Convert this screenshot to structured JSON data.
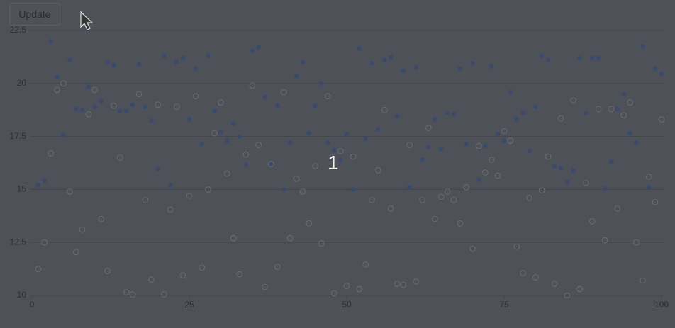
{
  "button": "Update",
  "overlay": "1",
  "chart_data": {
    "type": "scatter",
    "xlim": [
      0,
      100
    ],
    "xticks": [
      0,
      25,
      50,
      75,
      100
    ],
    "ylim": [
      10,
      22.5
    ],
    "yticks": [
      10,
      12.5,
      15,
      17.5,
      20,
      22.5
    ],
    "grid": true,
    "x": [
      1,
      2,
      3,
      4,
      5,
      6,
      7,
      8,
      9,
      10,
      11,
      12,
      13,
      14,
      15,
      16,
      17,
      18,
      19,
      20,
      21,
      22,
      23,
      24,
      25,
      26,
      27,
      28,
      29,
      30,
      31,
      32,
      33,
      34,
      35,
      36,
      37,
      38,
      39,
      40,
      41,
      42,
      43,
      44,
      45,
      46,
      47,
      48,
      49,
      50,
      51,
      52,
      53,
      54,
      55,
      56,
      57,
      58,
      59,
      60,
      61,
      62,
      63,
      64,
      65,
      66,
      67,
      68,
      69,
      70,
      71,
      72,
      73,
      74,
      75,
      76,
      77,
      78,
      79,
      80,
      81,
      82,
      83,
      84,
      85,
      86,
      87,
      88,
      89,
      90,
      91,
      92,
      93,
      94,
      95,
      96,
      97,
      98,
      99,
      100
    ],
    "series": [
      {
        "color": "#3a4a6c",
        "filled": true,
        "values": [
          15.2,
          15.4,
          22.0,
          20.3,
          17.55,
          21.1,
          18.8,
          18.75,
          19.85,
          18.9,
          19.15,
          21.0,
          20.85,
          18.7,
          18.7,
          19.0,
          20.9,
          18.9,
          18.25,
          15.95,
          21.3,
          15.2,
          21.0,
          21.2,
          18.3,
          20.7,
          17.15,
          21.3,
          18.7,
          17.7,
          17.3,
          18.1,
          17.5,
          16.15,
          21.55,
          21.7,
          19.35,
          16.2,
          18.95,
          15.0,
          17.2,
          20.35,
          21.0,
          17.65,
          18.95,
          20.0,
          17.2,
          16.85,
          16.4,
          17.6,
          15.0,
          21.65,
          17.4,
          20.95,
          17.85,
          21.1,
          21.25,
          18.45,
          20.6,
          15.1,
          20.75,
          16.4,
          17.0,
          18.3,
          16.9,
          18.6,
          18.55,
          20.7,
          17.15,
          20.95,
          15.45,
          17.05,
          20.8,
          17.6,
          17.3,
          19.6,
          18.3,
          18.6,
          16.8,
          18.9,
          21.3,
          21.1,
          16.1,
          16.0,
          15.35,
          15.9,
          21.2,
          18.6,
          21.2,
          21.2,
          15.05,
          16.3,
          18.8,
          19.5,
          17.65,
          17.2,
          21.75,
          15.1,
          20.7,
          20.45
        ]
      },
      {
        "color": "#6b6d74",
        "filled": false,
        "values": [
          11.25,
          12.5,
          16.7,
          19.7,
          20.0,
          14.9,
          12.05,
          13.1,
          18.55,
          19.7,
          13.6,
          11.15,
          18.95,
          16.5,
          10.15,
          10.05,
          19.5,
          14.5,
          10.75,
          19.0,
          10.05,
          14.05,
          18.9,
          10.95,
          14.7,
          19.4,
          11.3,
          15.0,
          17.65,
          19.1,
          15.75,
          12.7,
          11.0,
          16.65,
          19.9,
          17.1,
          10.4,
          16.2,
          11.35,
          19.6,
          12.7,
          15.5,
          14.9,
          13.4,
          16.1,
          12.45,
          19.4,
          10.1,
          16.8,
          10.45,
          16.55,
          10.3,
          11.45,
          14.5,
          15.9,
          18.75,
          14.1,
          10.55,
          10.5,
          17.1,
          10.65,
          14.5,
          17.9,
          13.6,
          14.65,
          14.9,
          14.5,
          13.4,
          15.1,
          12.2,
          17.05,
          15.8,
          16.4,
          15.65,
          17.75,
          17.3,
          12.3,
          11.05,
          14.6,
          10.85,
          14.95,
          16.55,
          10.55,
          18.35,
          10.0,
          19.2,
          10.3,
          15.3,
          13.5,
          18.8,
          12.6,
          18.8,
          14.1,
          18.5,
          19.1,
          12.5,
          10.7,
          15.6,
          14.4,
          18.3
        ]
      }
    ]
  }
}
